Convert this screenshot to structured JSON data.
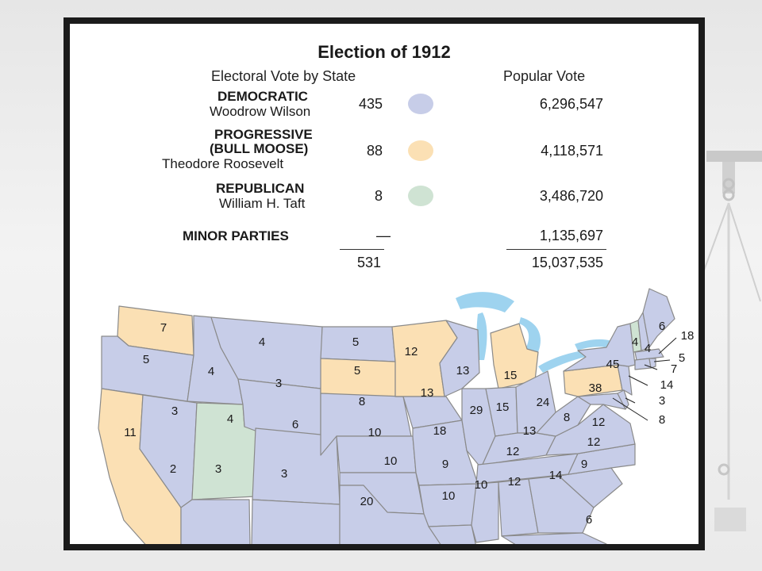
{
  "title": "Election of 1912",
  "headers": {
    "electoral": "Electoral Vote by State",
    "popular": "Popular Vote"
  },
  "parties": [
    {
      "party": "DEMOCRATIC",
      "party_line2": "",
      "candidate": "Woodrow Wilson",
      "electoral_votes": "435",
      "popular_vote": "6,296,547",
      "color": "#c7cde8"
    },
    {
      "party": "PROGRESSIVE",
      "party_line2": "(BULL MOOSE)",
      "candidate": "Theodore Roosevelt",
      "electoral_votes": "88",
      "popular_vote": "4,118,571",
      "color": "#fbe0b4"
    },
    {
      "party": "REPUBLICAN",
      "party_line2": "",
      "candidate": "William H. Taft",
      "electoral_votes": "8",
      "popular_vote": "3,486,720",
      "color": "#cfe3d3"
    },
    {
      "party": "MINOR PARTIES",
      "party_line2": "",
      "candidate": "",
      "electoral_votes": "—",
      "popular_vote": "1,135,697",
      "color": ""
    }
  ],
  "totals": {
    "electoral_votes": "531",
    "popular_vote": "15,037,535"
  },
  "map": {
    "colors": {
      "democratic": "#c7cde8",
      "progressive": "#fbe0b4",
      "republican": "#cfe3d3",
      "water": "#9ed3ef",
      "border": "#8a8a8a"
    },
    "state_votes": {
      "WA": "7",
      "OR": "5",
      "CA": "11",
      "CA_2": "2",
      "ID": "4",
      "NV": "3",
      "UT": "4",
      "AZ": "3",
      "MT": "4",
      "WY": "3",
      "CO": "6",
      "NM": "3",
      "ND": "5",
      "SD": "5",
      "NE": "8",
      "KS": "10",
      "OK": "10",
      "TX": "20",
      "MN": "12",
      "IA": "13",
      "MO": "18",
      "AR": "9",
      "LA": "10",
      "WI": "13",
      "IL": "29",
      "MI": "15",
      "IN": "15",
      "OH": "24",
      "KY": "13",
      "TN": "12",
      "MS": "10",
      "AL": "12",
      "GA": "14",
      "FL": "6",
      "SC": "9",
      "NC": "12",
      "VA": "12",
      "WV": "8",
      "PA": "38",
      "NY": "45",
      "VT": "4",
      "NH": "4",
      "ME": "6",
      "MA": "18",
      "RI": "5",
      "CT": "7",
      "NJ": "14",
      "DE": "3",
      "MD": "8"
    }
  }
}
